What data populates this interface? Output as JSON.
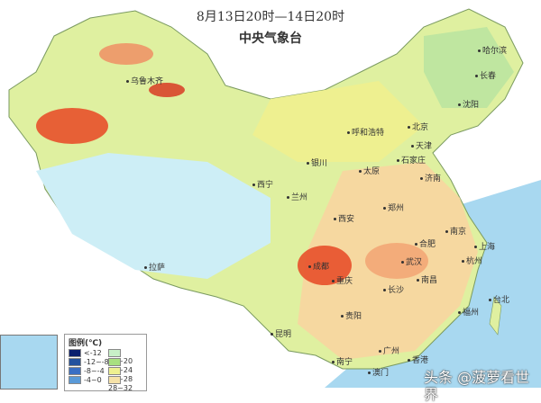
{
  "header": {
    "time_range": "8月13日20时—14日20时",
    "issuer": "中央气象台"
  },
  "cities": [
    {
      "name": "乌鲁木齐"
    },
    {
      "name": "哈尔滨"
    },
    {
      "name": "长春"
    },
    {
      "name": "沈阳"
    },
    {
      "name": "北京"
    },
    {
      "name": "天津"
    },
    {
      "name": "呼和浩特"
    },
    {
      "name": "银川"
    },
    {
      "name": "太原"
    },
    {
      "name": "石家庄"
    },
    {
      "name": "济南"
    },
    {
      "name": "西宁"
    },
    {
      "name": "兰州"
    },
    {
      "name": "郑州"
    },
    {
      "name": "西安"
    },
    {
      "name": "合肥"
    },
    {
      "name": "南京"
    },
    {
      "name": "上海"
    },
    {
      "name": "武汉"
    },
    {
      "name": "杭州"
    },
    {
      "name": "成都"
    },
    {
      "name": "重庆"
    },
    {
      "name": "长沙"
    },
    {
      "name": "南昌"
    },
    {
      "name": "拉萨"
    },
    {
      "name": "贵阳"
    },
    {
      "name": "昆明"
    },
    {
      "name": "福州"
    },
    {
      "name": "台北"
    },
    {
      "name": "南宁"
    },
    {
      "name": "广州"
    },
    {
      "name": "香港"
    },
    {
      "name": "澳门"
    }
  ],
  "legend": {
    "title": "图例(℃)",
    "items": [
      {
        "label": "<-12",
        "color": "#0a1f6e"
      },
      {
        "label": "-12~-8",
        "color": "#24529e"
      },
      {
        "label": "-8~-4",
        "color": "#3a6fc4"
      },
      {
        "label": "-4~0",
        "color": "#5a9ad8"
      },
      {
        "label": "16~20",
        "color": "#c8f0c8"
      },
      {
        "label": "20~24",
        "color": "#a8e080"
      },
      {
        "label": "24~28",
        "color": "#eef090"
      },
      {
        "label": "28~32",
        "color": "#f6e2a8"
      }
    ]
  },
  "colors": {
    "sea": "#a8d8f0",
    "hot": "#e8502a",
    "warm": "#f4b27a",
    "mild": "#eef090",
    "cool": "#a8e080",
    "cold": "#cdeef6"
  },
  "watermark": "头条 @菠萝看世界"
}
